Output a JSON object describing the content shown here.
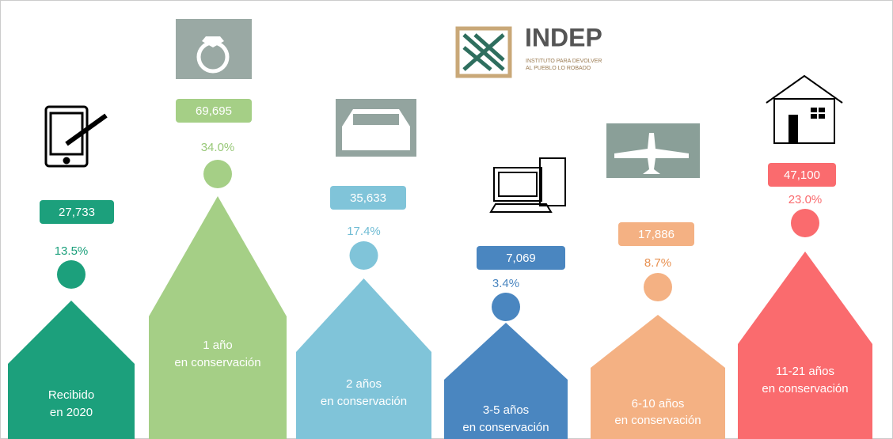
{
  "logo": {
    "title": "INDEP",
    "subtitle": [
      "INSTITUTO PARA DEVOLVER",
      "AL PUEBLO LO ROBADO"
    ]
  },
  "items": [
    {
      "label": [
        "Recibido",
        "en 2020"
      ],
      "count": "27,733",
      "percent": "13.5%",
      "color": "#1ca07c",
      "text_color": "#1ca07c"
    },
    {
      "label": [
        "1 año",
        "en conservación"
      ],
      "count": "69,695",
      "percent": "34.0%",
      "color": "#a5cf86",
      "text_color": "#98c878"
    },
    {
      "label": [
        "2 años",
        "en conservación"
      ],
      "count": "35,633",
      "percent": "17.4%",
      "color": "#80c4d9",
      "text_color": "#70bcd4"
    },
    {
      "label": [
        "3-5 años",
        "en conservación"
      ],
      "count": "7,069",
      "percent": "3.4%",
      "color": "#4a86c0",
      "text_color": "#4a86c0"
    },
    {
      "label": [
        "6-10 años",
        "en conservación"
      ],
      "count": "17,886",
      "percent": "8.7%",
      "color": "#f4b183",
      "text_color": "#e89050"
    },
    {
      "label": [
        "11-21 años",
        "en conservación"
      ],
      "count": "47,100",
      "percent": "23.0%",
      "color": "#fa6b6e",
      "text_color": "#fa6b6e"
    }
  ]
}
